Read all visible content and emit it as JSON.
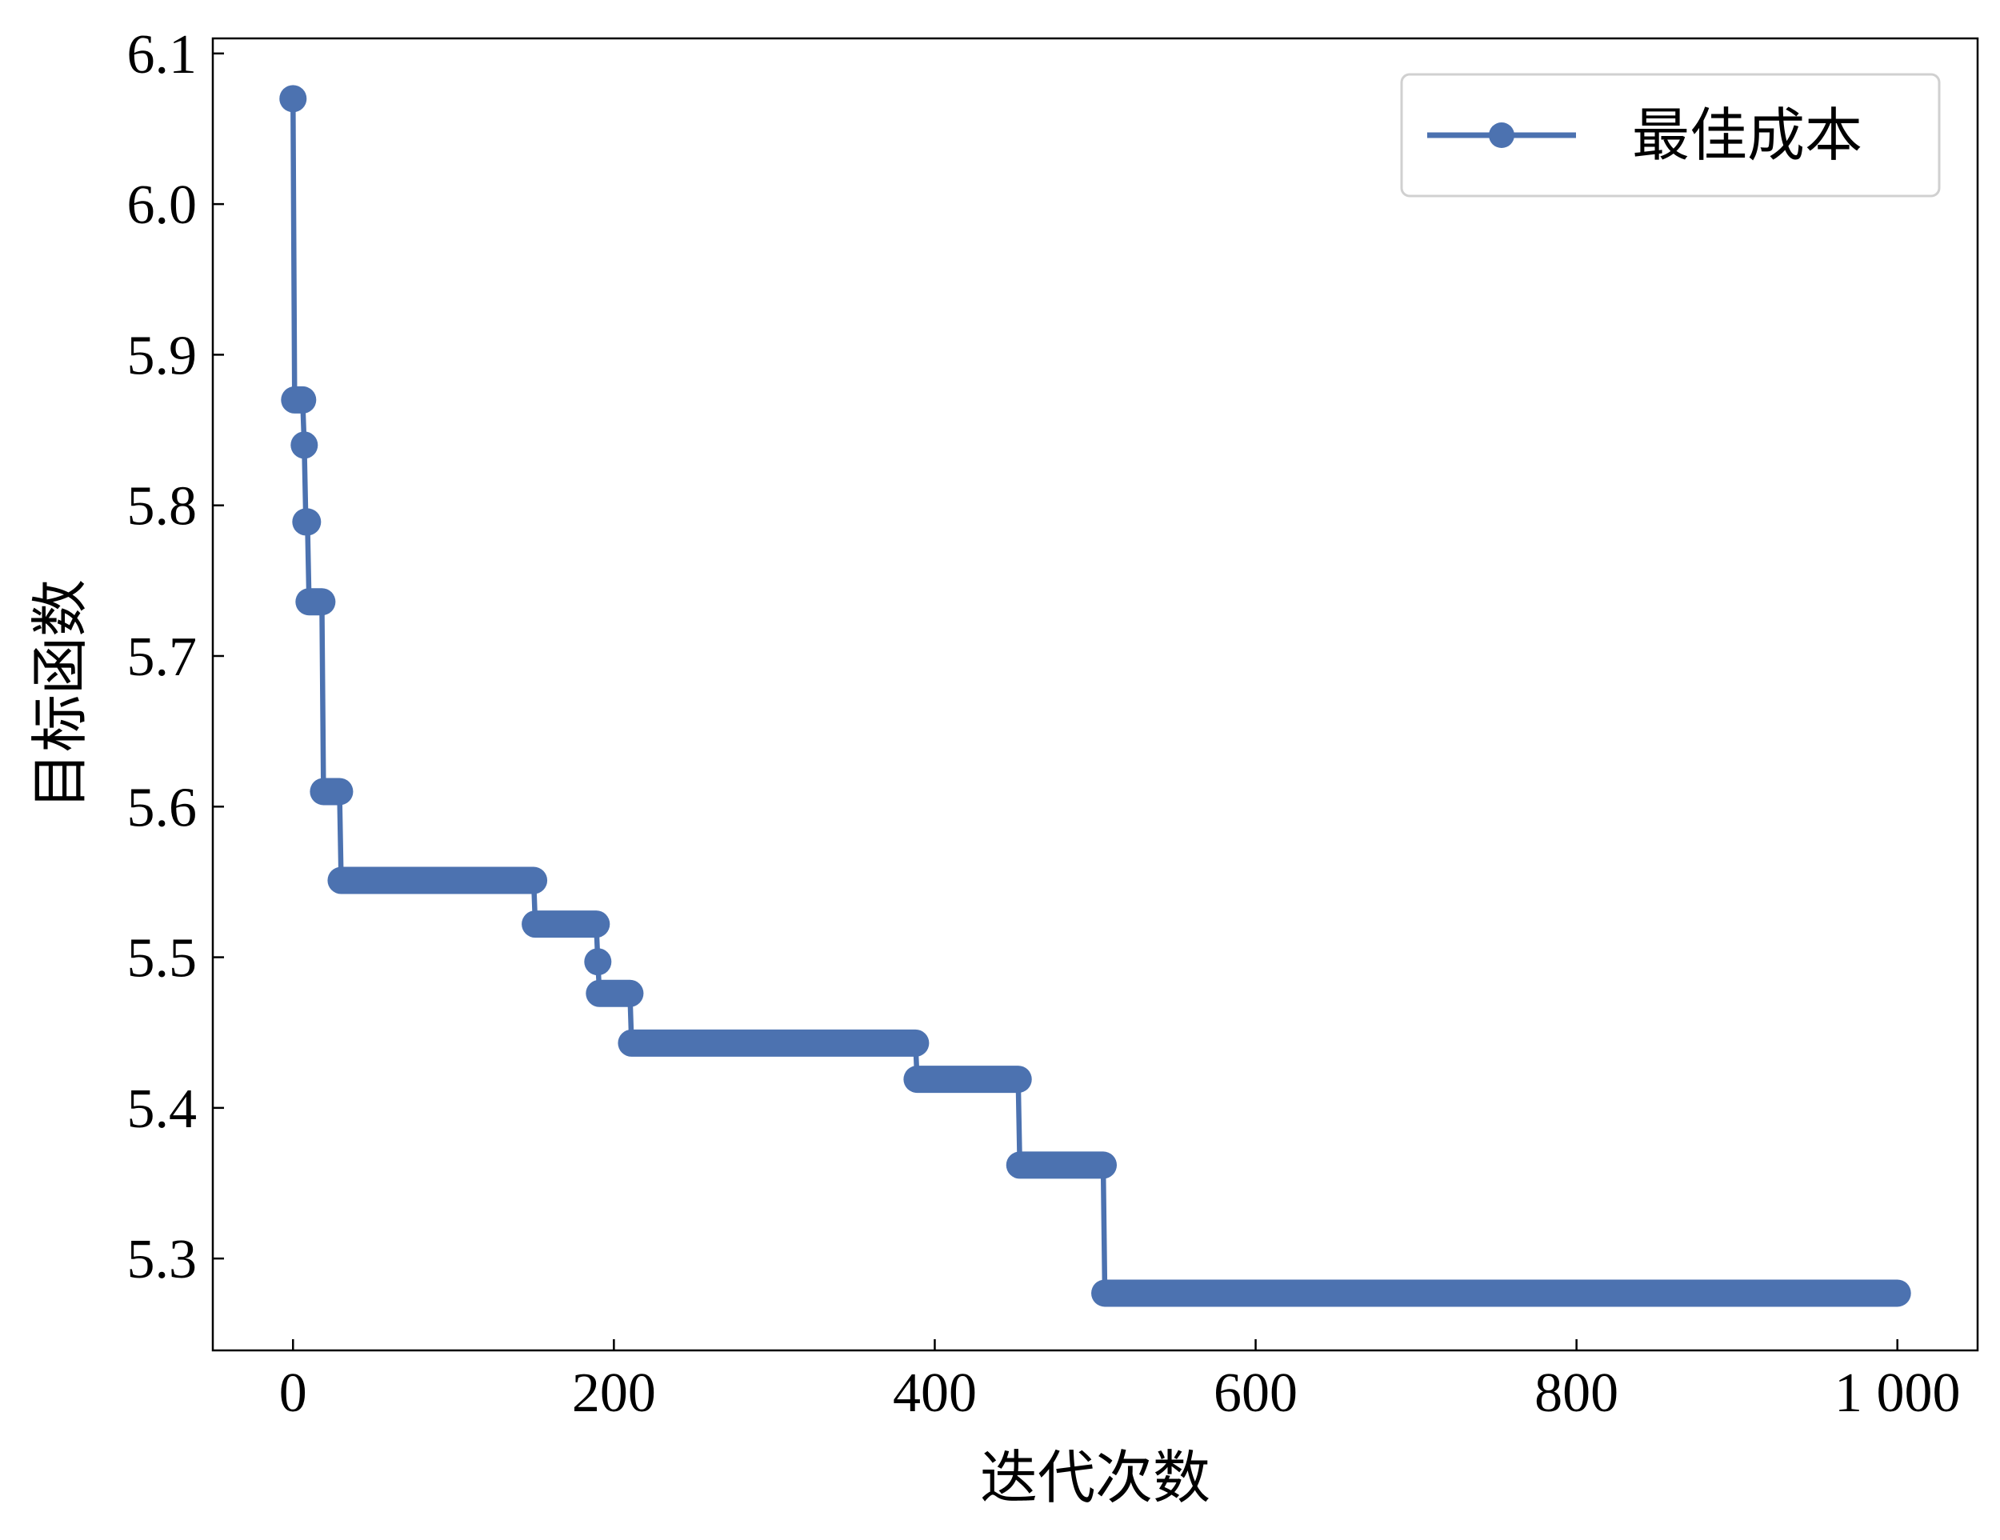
{
  "chart_data": {
    "type": "line",
    "title": "",
    "xlabel": "迭代次数",
    "ylabel": "目标函数",
    "xlim": [
      -50,
      1050
    ],
    "ylim": [
      5.239,
      6.11
    ],
    "xticks": [
      0,
      200,
      400,
      600,
      800,
      1000
    ],
    "xtick_labels": [
      "0",
      "200",
      "400",
      "600",
      "800",
      "1 000"
    ],
    "yticks": [
      5.3,
      5.4,
      5.5,
      5.6,
      5.7,
      5.8,
      5.9,
      6.0,
      6.1
    ],
    "ytick_labels": [
      "5.3",
      "5.4",
      "5.5",
      "5.6",
      "5.7",
      "5.8",
      "5.9",
      "6.0",
      "6.1"
    ],
    "grid": false,
    "legend_position": "top-right",
    "series": [
      {
        "name": "最佳成本",
        "color": "#4C72B0",
        "marker": "circle",
        "steps": [
          {
            "from": 0,
            "to": 0,
            "value": 6.07
          },
          {
            "from": 1,
            "to": 6,
            "value": 5.87
          },
          {
            "from": 7,
            "to": 7,
            "value": 5.84
          },
          {
            "from": 8,
            "to": 9,
            "value": 5.789
          },
          {
            "from": 10,
            "to": 18,
            "value": 5.736
          },
          {
            "from": 19,
            "to": 29,
            "value": 5.61
          },
          {
            "from": 30,
            "to": 150,
            "value": 5.551
          },
          {
            "from": 151,
            "to": 189,
            "value": 5.522
          },
          {
            "from": 190,
            "to": 190,
            "value": 5.497
          },
          {
            "from": 191,
            "to": 210,
            "value": 5.476
          },
          {
            "from": 211,
            "to": 388,
            "value": 5.443
          },
          {
            "from": 389,
            "to": 452,
            "value": 5.419
          },
          {
            "from": 453,
            "to": 505,
            "value": 5.362
          },
          {
            "from": 506,
            "to": 1000,
            "value": 5.277
          }
        ]
      }
    ]
  }
}
